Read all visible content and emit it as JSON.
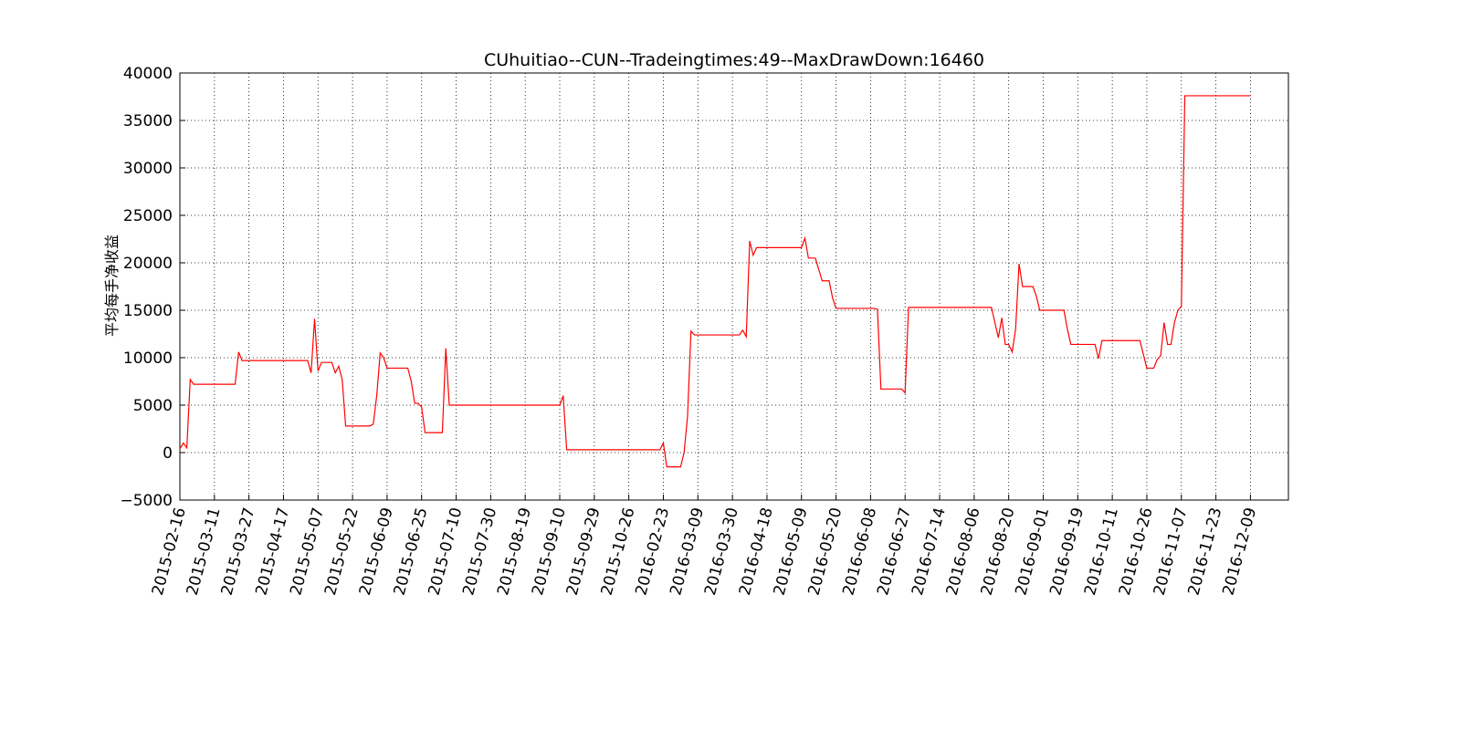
{
  "chart_data": {
    "type": "line",
    "title": "CUhuitiao--CUN--Tradeingtimes:49--MaxDrawDown:16460",
    "y_label": "平均每手净收益",
    "x": [
      0,
      1,
      2,
      3,
      4,
      16,
      17,
      18,
      37,
      38,
      39,
      40,
      41,
      44,
      45,
      46,
      47,
      48,
      55,
      56,
      57,
      58,
      59,
      60,
      66,
      67,
      68,
      69,
      70,
      71,
      76,
      77,
      78,
      110,
      111,
      112,
      139,
      140,
      141,
      145,
      146,
      147,
      148,
      149,
      162,
      163,
      164,
      165,
      166,
      167,
      180,
      181,
      182,
      184,
      185,
      186,
      188,
      189,
      190,
      201,
      202,
      203,
      209,
      210,
      211,
      235,
      236,
      237,
      238,
      239,
      240,
      241,
      242,
      243,
      244,
      247,
      248,
      249,
      256,
      257,
      258,
      265,
      266,
      267,
      278,
      280,
      282,
      283,
      284,
      285,
      286,
      287,
      288,
      289,
      290,
      291,
      310
    ],
    "series": [
      {
        "name": "CUN",
        "color": "#ff0000",
        "values": [
          400,
          1000,
          500,
          7700,
          7200,
          7200,
          10600,
          9700,
          9700,
          8400,
          14100,
          8600,
          9500,
          9500,
          8400,
          9100,
          7700,
          2800,
          2800,
          3000,
          6000,
          10500,
          10000,
          8900,
          8900,
          7500,
          5200,
          5200,
          4800,
          2100,
          2100,
          11000,
          5000,
          5000,
          6000,
          300,
          300,
          1000,
          -1500,
          -1500,
          0,
          3800,
          12800,
          12400,
          12400,
          12900,
          12200,
          22300,
          20800,
          21600,
          21600,
          22600,
          20500,
          20500,
          19300,
          18100,
          18100,
          16300,
          15200,
          15200,
          15100,
          6700,
          6700,
          6300,
          15300,
          15300,
          13700,
          12100,
          14200,
          11400,
          11400,
          10600,
          13000,
          19900,
          17500,
          17500,
          16500,
          15000,
          15000,
          13000,
          11400,
          11400,
          9900,
          11800,
          11800,
          8900,
          8900,
          9800,
          10200,
          13700,
          11400,
          11400,
          13700,
          15000,
          15400,
          37600,
          37600
        ]
      }
    ],
    "xlim": [
      0,
      321
    ],
    "xticks": [
      {
        "value": 0,
        "label": "2015-02-16"
      },
      {
        "value": 10,
        "label": "2015-03-11"
      },
      {
        "value": 20,
        "label": "2015-03-27"
      },
      {
        "value": 30,
        "label": "2015-04-17"
      },
      {
        "value": 40,
        "label": "2015-05-07"
      },
      {
        "value": 50,
        "label": "2015-05-22"
      },
      {
        "value": 60,
        "label": "2015-06-09"
      },
      {
        "value": 70,
        "label": "2015-06-25"
      },
      {
        "value": 80,
        "label": "2015-07-10"
      },
      {
        "value": 90,
        "label": "2015-07-30"
      },
      {
        "value": 100,
        "label": "2015-08-19"
      },
      {
        "value": 110,
        "label": "2015-09-10"
      },
      {
        "value": 120,
        "label": "2015-09-29"
      },
      {
        "value": 130,
        "label": "2015-10-26"
      },
      {
        "value": 140,
        "label": "2016-02-23"
      },
      {
        "value": 150,
        "label": "2016-03-09"
      },
      {
        "value": 160,
        "label": "2016-03-30"
      },
      {
        "value": 170,
        "label": "2016-04-18"
      },
      {
        "value": 180,
        "label": "2016-05-09"
      },
      {
        "value": 190,
        "label": "2016-05-20"
      },
      {
        "value": 200,
        "label": "2016-06-08"
      },
      {
        "value": 210,
        "label": "2016-06-27"
      },
      {
        "value": 220,
        "label": "2016-07-14"
      },
      {
        "value": 230,
        "label": "2016-08-06"
      },
      {
        "value": 240,
        "label": "2016-08-20"
      },
      {
        "value": 250,
        "label": "2016-09-01"
      },
      {
        "value": 260,
        "label": "2016-09-19"
      },
      {
        "value": 270,
        "label": "2016-10-11"
      },
      {
        "value": 280,
        "label": "2016-10-26"
      },
      {
        "value": 290,
        "label": "2016-11-07"
      },
      {
        "value": 300,
        "label": "2016-11-23"
      },
      {
        "value": 310,
        "label": "2016-12-09"
      }
    ],
    "ylim": [
      -5000,
      40000
    ],
    "yticks": [
      {
        "value": -5000,
        "label": "−5000"
      },
      0,
      5000,
      10000,
      15000,
      20000,
      25000,
      30000,
      35000,
      40000
    ],
    "grid": true
  }
}
